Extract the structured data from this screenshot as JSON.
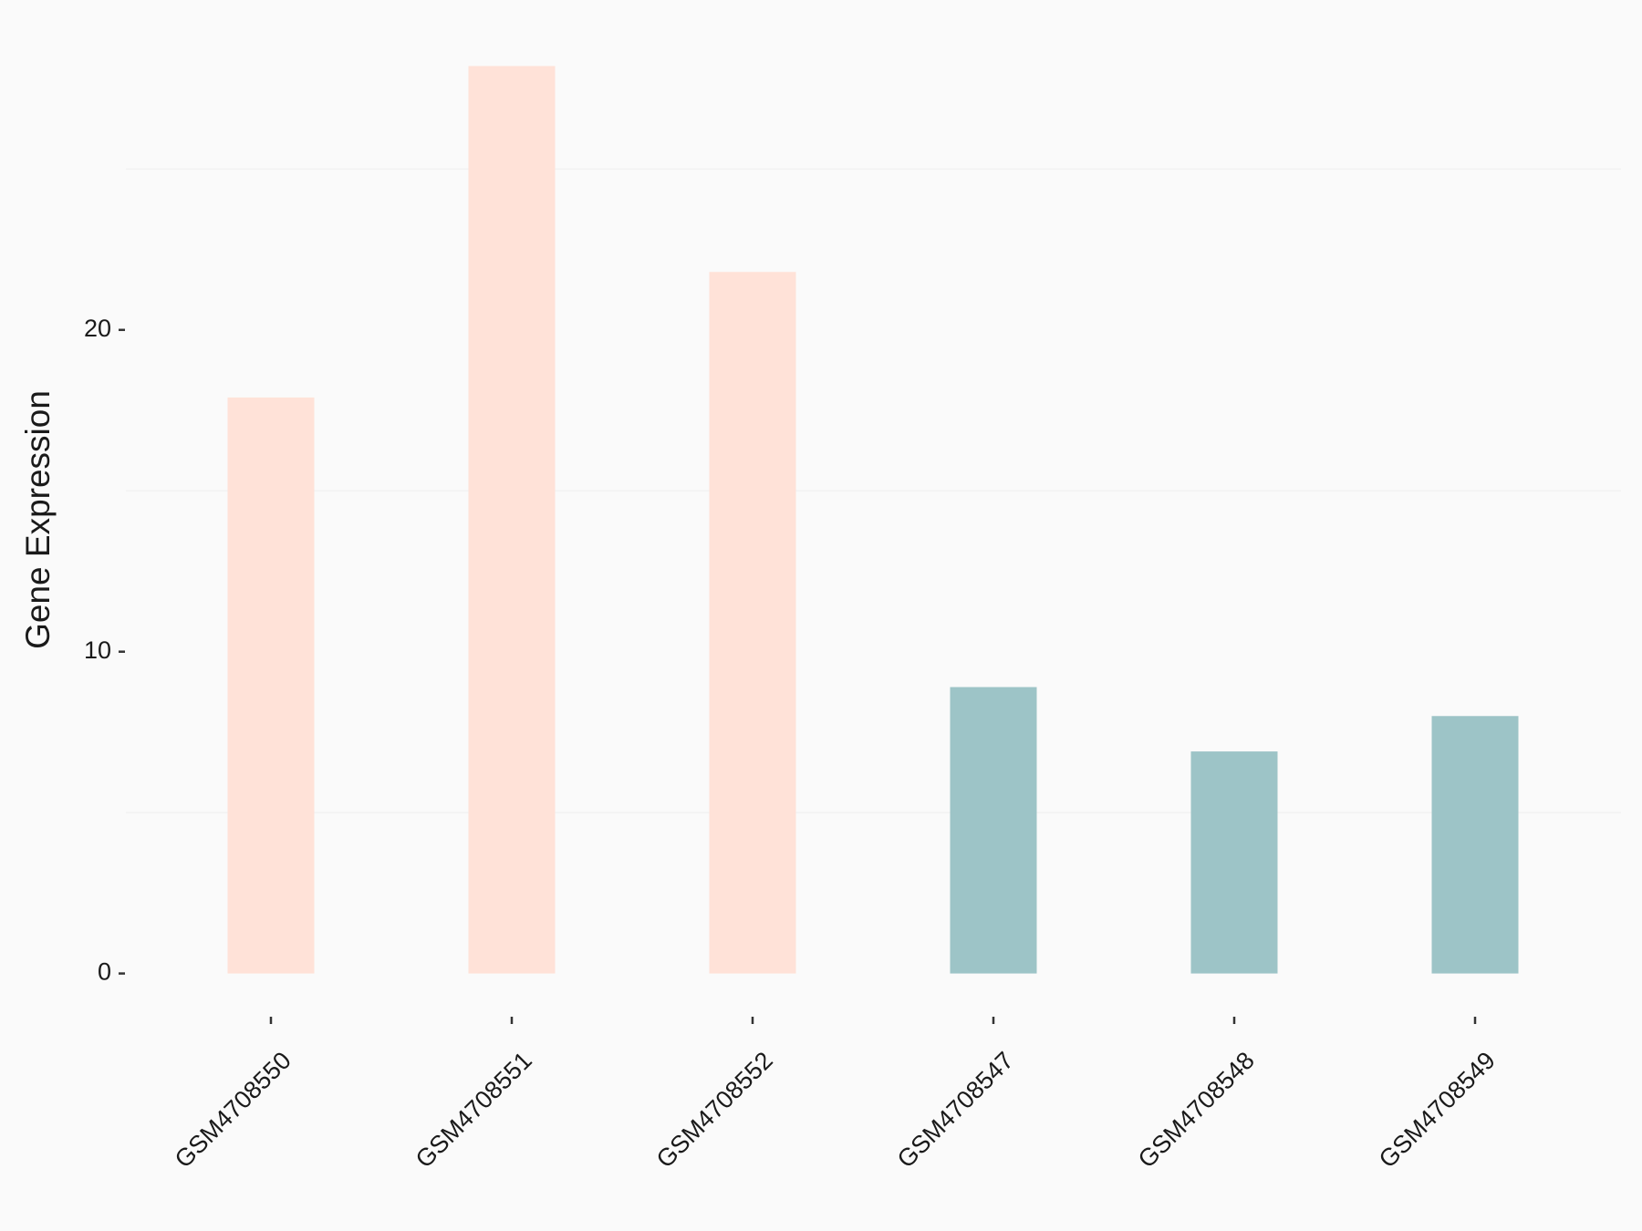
{
  "chart_data": {
    "type": "bar",
    "y_label": "Gene Expression",
    "categories": [
      "GSM4708550",
      "GSM4708551",
      "GSM4708552",
      "GSM4708547",
      "GSM4708548",
      "GSM4708549"
    ],
    "values": [
      17.9,
      28.2,
      21.8,
      8.9,
      6.9,
      8.0
    ],
    "colors": [
      "#ffe2d8",
      "#ffe2d8",
      "#ffe2d8",
      "#9dc4c7",
      "#9dc4c7",
      "#9dc4c7"
    ],
    "ylim": [
      -1.4,
      29.6
    ],
    "yticks": [
      0,
      10,
      20
    ],
    "minor_yticks": [
      5,
      15,
      25
    ]
  }
}
